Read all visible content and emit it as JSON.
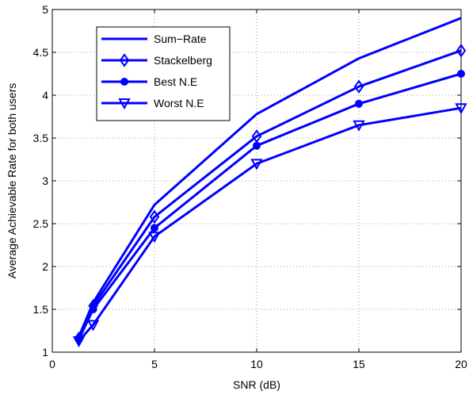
{
  "chart_data": {
    "type": "line",
    "title": "",
    "xlabel": "SNR (dB)",
    "ylabel": "Average Achievable Rate for both users",
    "xlim": [
      0,
      20
    ],
    "ylim": [
      1,
      5
    ],
    "xticks": [
      0,
      5,
      10,
      15,
      20
    ],
    "yticks": [
      1,
      1.5,
      2,
      2.5,
      3,
      3.5,
      4,
      4.5,
      5
    ],
    "xtick_labels": [
      "0",
      "5",
      "10",
      "15",
      "20"
    ],
    "ytick_labels": [
      "1",
      "1.5",
      "2",
      "2.5",
      "3",
      "3.5",
      "4",
      "4.5",
      "5"
    ],
    "grid": true,
    "grid_style": "dotted",
    "legend_position": "top-left",
    "line_color": "#0000ff",
    "series": [
      {
        "name": "Sum−Rate",
        "marker": "none",
        "x": [
          1.3,
          2,
          5,
          10,
          15,
          20
        ],
        "y": [
          1.18,
          1.58,
          2.72,
          3.78,
          4.43,
          4.9
        ]
      },
      {
        "name": "Stackelberg",
        "marker": "diamond",
        "x": [
          1.3,
          2,
          5,
          10,
          15,
          20
        ],
        "y": [
          1.16,
          1.54,
          2.58,
          3.52,
          4.1,
          4.52
        ]
      },
      {
        "name": "Best N.E",
        "marker": "circle",
        "x": [
          1.3,
          2,
          5,
          10,
          15,
          20
        ],
        "y": [
          1.15,
          1.5,
          2.45,
          3.41,
          3.9,
          4.25
        ]
      },
      {
        "name": "Worst  N.E",
        "marker": "triangle-down",
        "x": [
          1.3,
          2,
          5,
          10,
          15,
          20
        ],
        "y": [
          1.13,
          1.32,
          2.35,
          3.2,
          3.65,
          3.85
        ]
      }
    ]
  }
}
